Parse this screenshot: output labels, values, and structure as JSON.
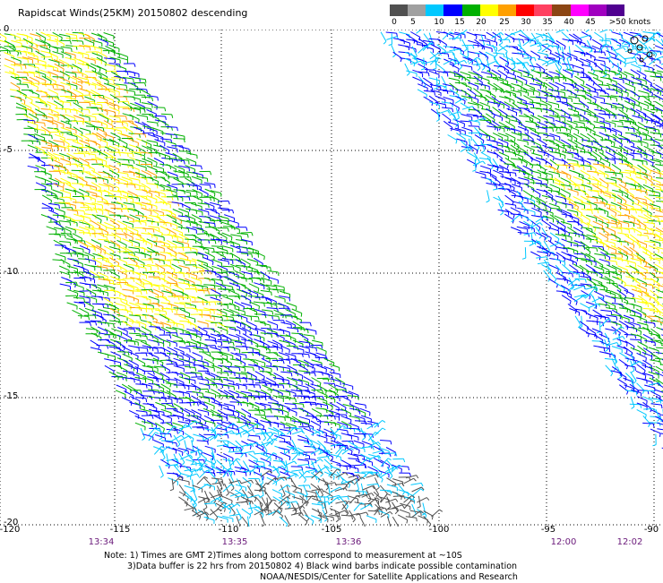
{
  "title": "Rapidscat Winds(25KM) 20150802 descending",
  "legend": {
    "colors": [
      "#505050",
      "#a0a0a0",
      "#00c8ff",
      "#0000ff",
      "#00b000",
      "#ffff00",
      "#ffa000",
      "#ff0000",
      "#ff4060",
      "#8b4513",
      "#ff00ff",
      "#a000c0",
      "#500090"
    ],
    "labels": [
      "0",
      "5",
      "10",
      "15",
      "20",
      "25",
      "30",
      "35",
      "40",
      "45",
      ">50 knots"
    ]
  },
  "map": {
    "lon_range": [
      -120,
      -90
    ],
    "lat_range": [
      -20,
      0
    ],
    "lon_ticks": [
      "-120",
      "-115",
      "-110",
      "-105",
      "-100",
      "-95",
      "-90"
    ],
    "lat_ticks": [
      "0",
      "-5",
      "-10",
      "-15",
      "-20"
    ]
  },
  "pass_times": [
    "13:34",
    "13:35",
    "13:36",
    "12:00",
    "12:02"
  ],
  "note": {
    "line1": "Note: 1) Times are GMT 2)Times along bottom correspond to measurement at ~10S",
    "line2": "3)Data buffer is 22 hrs from 20150802 4) Black wind barbs indicate possible contamination",
    "line3": "NOAA/NESDIS/Center for Satellite Applications and Research"
  }
}
